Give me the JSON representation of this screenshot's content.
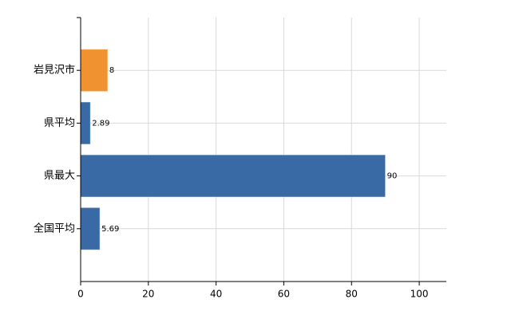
{
  "chart_data": {
    "type": "bar",
    "orientation": "horizontal",
    "categories": [
      "岩見沢市",
      "県平均",
      "県最大",
      "全国平均"
    ],
    "values": [
      8,
      2.89,
      90,
      5.69
    ],
    "colors": [
      "#f0922f",
      "#3a6aa5",
      "#3a6aa5",
      "#3a6aa5"
    ],
    "xlim": [
      0,
      108
    ],
    "xticks": [
      0,
      20,
      40,
      60,
      80,
      100
    ],
    "grid": true
  }
}
